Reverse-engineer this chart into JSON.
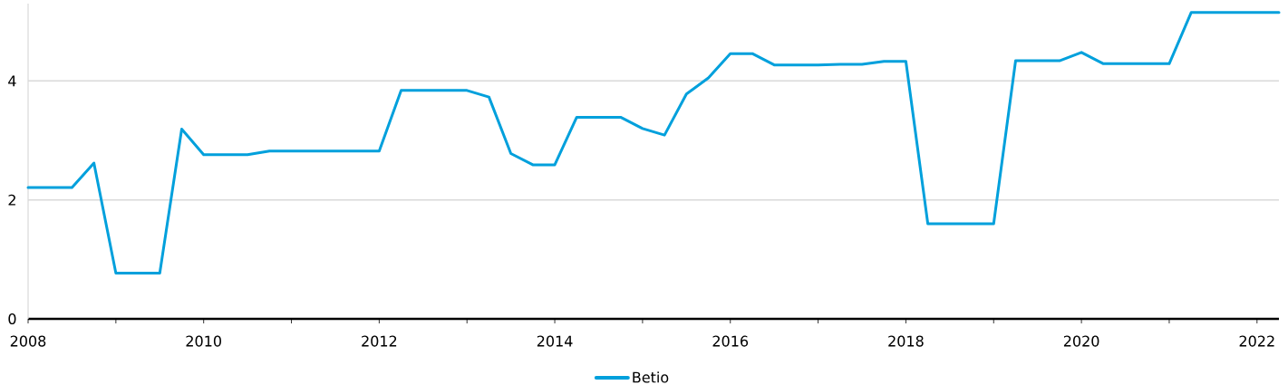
{
  "chart_data": {
    "type": "line",
    "x": [
      2008,
      2008.25,
      2008.5,
      2008.75,
      2009,
      2009.25,
      2009.5,
      2009.75,
      2010,
      2010.25,
      2010.5,
      2010.75,
      2011,
      2011.25,
      2011.5,
      2011.75,
      2012,
      2012.25,
      2012.5,
      2012.75,
      2013,
      2013.25,
      2013.5,
      2013.75,
      2014,
      2014.25,
      2014.5,
      2014.75,
      2015,
      2015.25,
      2015.5,
      2015.75,
      2016,
      2016.25,
      2016.5,
      2016.75,
      2017,
      2017.25,
      2017.5,
      2017.75,
      2018,
      2018.25,
      2018.5,
      2018.75,
      2019,
      2019.25,
      2019.5,
      2019.75,
      2020,
      2020.25,
      2020.5,
      2020.75,
      2021,
      2021.25,
      2021.5,
      2021.75,
      2022,
      2022.25
    ],
    "series": [
      {
        "name": "Betio",
        "color": "#00a0dc",
        "values": [
          2.21,
          2.21,
          2.21,
          2.62,
          0.77,
          0.77,
          0.77,
          3.19,
          2.76,
          2.76,
          2.76,
          2.82,
          2.82,
          2.82,
          2.82,
          2.82,
          2.82,
          3.84,
          3.84,
          3.84,
          3.84,
          3.73,
          2.78,
          2.59,
          2.59,
          3.39,
          3.39,
          3.39,
          3.2,
          3.09,
          3.78,
          4.05,
          4.46,
          4.46,
          4.27,
          4.27,
          4.27,
          4.28,
          4.28,
          4.33,
          4.33,
          1.6,
          1.6,
          1.6,
          1.6,
          4.34,
          4.34,
          4.34,
          4.48,
          4.29,
          4.29,
          4.29,
          4.29,
          5.15,
          5.15,
          5.15,
          5.15,
          5.15
        ]
      }
    ],
    "xlim": [
      2008,
      2022.25
    ],
    "ylim": [
      0,
      5.3
    ],
    "xticks": [
      2008,
      {
        "value": 2009,
        "label": null
      },
      2010,
      {
        "value": 2011,
        "label": null
      },
      2012,
      {
        "value": 2013,
        "label": null
      },
      2014,
      {
        "value": 2015,
        "label": null
      },
      2016,
      {
        "value": 2017,
        "label": null
      },
      2018,
      {
        "value": 2019,
        "label": null
      },
      2020,
      {
        "value": 2021,
        "label": null
      },
      2022
    ],
    "yticks": [
      0,
      2,
      4
    ],
    "grid": "y",
    "legend": "bottom"
  }
}
